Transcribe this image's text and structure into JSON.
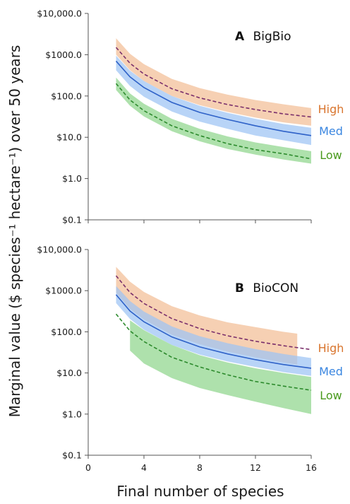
{
  "y_axis_label": "Marginal value ($ species⁻¹ hectare⁻¹) over 50 years",
  "x_axis_label": "Final number of species",
  "colors": {
    "high": "#7a2f6b",
    "high_band": "#f3be96",
    "high_text": "#d9752e",
    "med": "#2f62c8",
    "med_band": "#9cc4f4",
    "med_text": "#3a86e0",
    "low": "#2c8a2c",
    "low_band": "#8fd68c",
    "low_text": "#4a9a1e"
  },
  "chart_data": [
    {
      "type": "line",
      "panel_letter": "A",
      "panel_name": "BigBio",
      "xlim": [
        0,
        16
      ],
      "ylim": [
        0.1,
        10000
      ],
      "yscale": "log",
      "grid": false,
      "x_ticks": [],
      "y_ticks": [
        0.1,
        1,
        10,
        100,
        1000,
        10000
      ],
      "y_tick_labels": [
        "$0.1",
        "$1.0",
        "$10.0",
        "$100.0",
        "$1000.0",
        "$10,000.0"
      ],
      "x": [
        2,
        3,
        4,
        6,
        8,
        10,
        12,
        14,
        16
      ],
      "series": [
        {
          "name": "High",
          "style": "dashed",
          "values": [
            1500,
            620,
            340,
            150,
            90,
            62,
            47,
            37,
            31
          ],
          "band_low": [
            1000,
            420,
            230,
            100,
            60,
            41,
            30,
            23,
            19
          ],
          "band_high": [
            2500,
            1050,
            590,
            260,
            155,
            108,
            80,
            63,
            51
          ]
        },
        {
          "name": "Med",
          "style": "solid",
          "values": [
            700,
            290,
            160,
            70,
            40,
            27,
            19,
            14,
            11
          ],
          "band_low": [
            420,
            175,
            96,
            42,
            24,
            16,
            11,
            8.5,
            6.5
          ],
          "band_high": [
            950,
            410,
            230,
            100,
            58,
            39,
            28,
            21,
            17
          ]
        },
        {
          "name": "Low",
          "style": "dashed",
          "values": [
            200,
            80,
            44,
            19,
            11,
            7,
            5,
            4,
            3
          ],
          "band_low": [
            140,
            58,
            32,
            14,
            8,
            5.2,
            3.8,
            2.9,
            2.3
          ],
          "band_high": [
            280,
            115,
            65,
            28,
            16,
            10.5,
            7.5,
            5.8,
            4.6
          ]
        }
      ]
    },
    {
      "type": "line",
      "panel_letter": "B",
      "panel_name": "BioCON",
      "xlim": [
        0,
        16
      ],
      "ylim": [
        0.1,
        10000
      ],
      "yscale": "log",
      "grid": false,
      "x_ticks": [
        0,
        4,
        8,
        12,
        16
      ],
      "y_ticks": [
        0.1,
        1,
        10,
        100,
        1000,
        10000
      ],
      "y_tick_labels": [
        "$0.1",
        "$1.0",
        "$10.0",
        "$100.0",
        "$1000.0",
        "$10,000.0"
      ],
      "x": [
        2,
        3,
        4,
        6,
        8,
        10,
        12,
        14,
        16
      ],
      "series": [
        {
          "name": "High",
          "style": "dashed",
          "values": [
            2300,
            900,
            490,
            210,
            120,
            80,
            59,
            46,
            37
          ],
          "band_x": [
            2,
            3,
            4,
            6,
            8,
            10,
            12,
            14,
            15
          ],
          "band_low": [
            900,
            360,
            200,
            85,
            50,
            33,
            24,
            18,
            16
          ],
          "band_high": [
            3800,
            1650,
            930,
            420,
            250,
            170,
            130,
            100,
            90
          ]
        },
        {
          "name": "Med",
          "style": "solid",
          "values": [
            800,
            320,
            175,
            75,
            43,
            29,
            21,
            16,
            13
          ],
          "band_x": [
            2,
            3,
            4,
            6,
            8,
            10,
            12,
            14,
            16
          ],
          "band_low": [
            500,
            205,
            112,
            48,
            28,
            19,
            14,
            10.5,
            8.5
          ],
          "band_high": [
            1300,
            560,
            310,
            135,
            78,
            53,
            38,
            29,
            23
          ]
        },
        {
          "name": "Low",
          "style": "dashed",
          "values": [
            270,
            105,
            58,
            24,
            14,
            9,
            6.2,
            4.8,
            3.8
          ],
          "band_x": [
            3,
            4,
            6,
            8,
            10,
            12,
            14,
            16
          ],
          "band_low": [
            35,
            17,
            7.5,
            4.3,
            2.9,
            2.0,
            1.4,
            1.0
          ],
          "band_high": [
            190,
            110,
            48,
            27,
            18,
            13,
            10,
            8
          ]
        }
      ]
    }
  ]
}
